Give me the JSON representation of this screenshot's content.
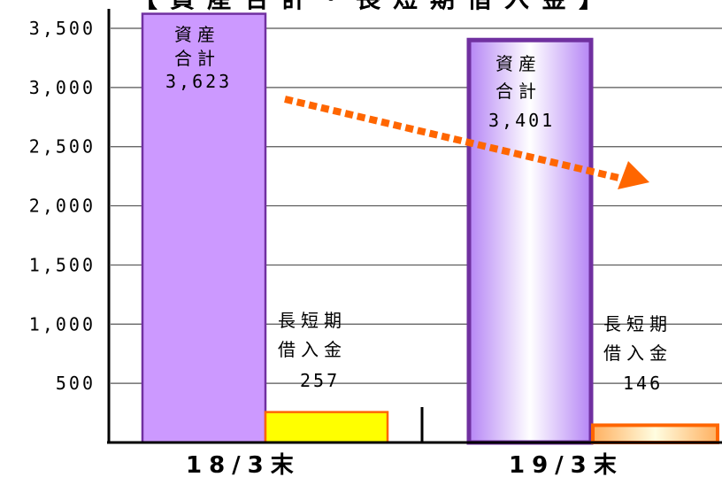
{
  "chart_data": {
    "type": "bar",
    "title": "【資産合計・長短期借入金】",
    "categories": [
      "18/3末",
      "19/3末"
    ],
    "series": [
      {
        "values": [
          3623,
          3401
        ]
      },
      {
        "values": [
          257,
          146
        ]
      }
    ],
    "ylim": [
      0,
      3500
    ],
    "yticks": [
      "500",
      "1,000",
      "1,500",
      "2,000",
      "2,500",
      "3,000",
      "3,500"
    ],
    "grid": true,
    "bar_labels": [
      [
        "資産",
        "合計",
        "3,623"
      ],
      [
        "長短期",
        "借入金",
        "257"
      ],
      [
        "資産",
        "合計",
        "3,401"
      ],
      [
        "長短期",
        "借入金",
        "146"
      ]
    ],
    "colors": {
      "asset_fill": "#cc99ff",
      "asset_border": "#7030a0",
      "loan_fill": "#ffff00",
      "loan_border": "#ff6600",
      "trend_arrow": "#ff6600"
    }
  }
}
